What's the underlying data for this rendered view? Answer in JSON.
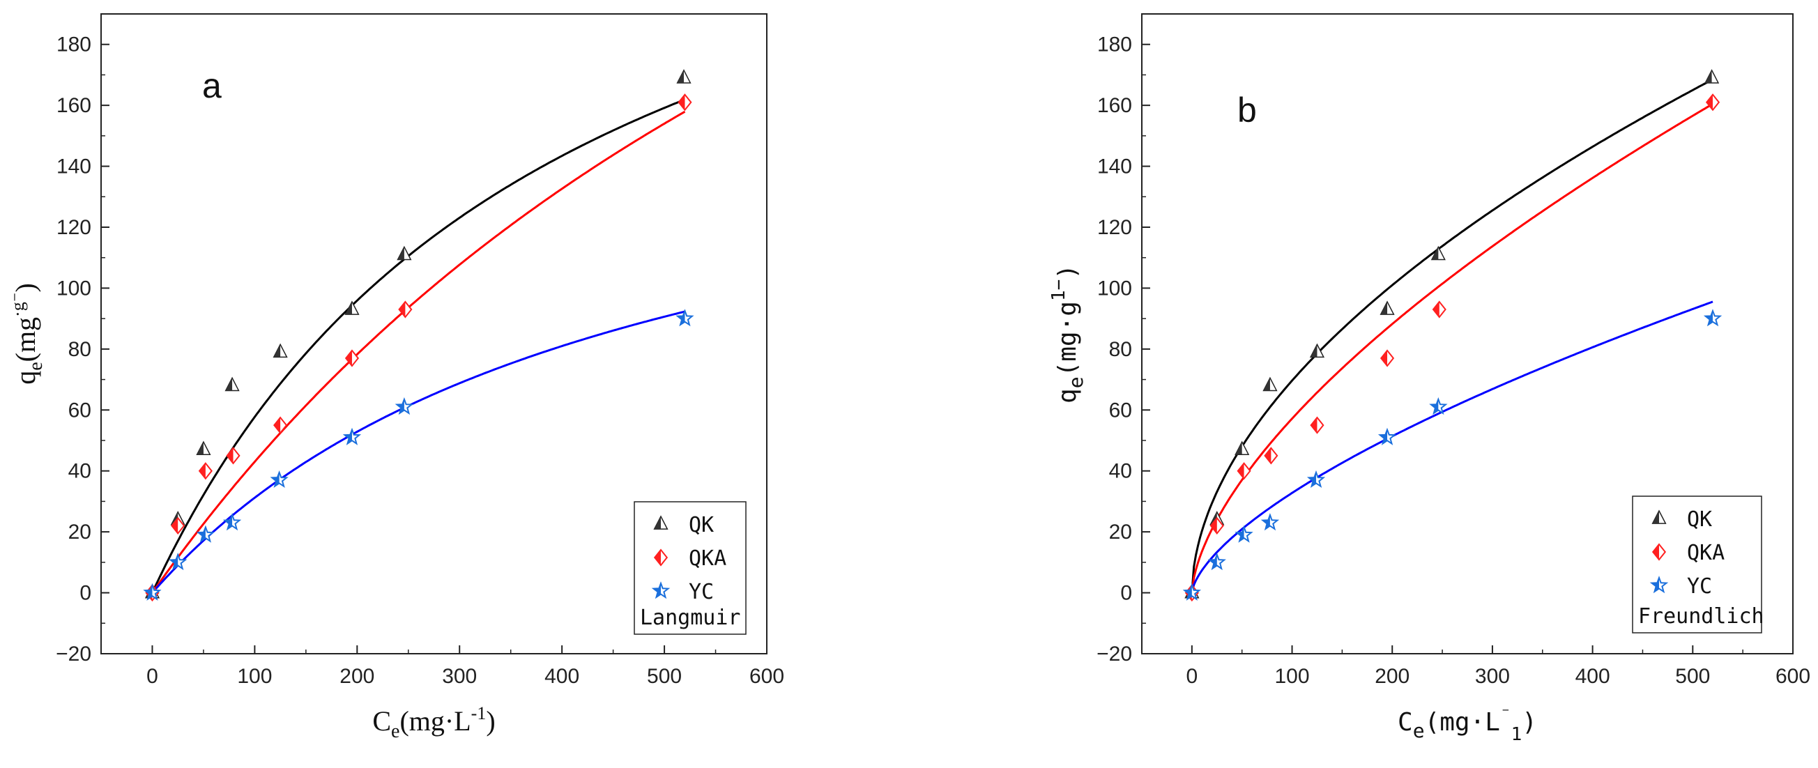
{
  "chart_data": [
    {
      "type": "scatter",
      "panel": "a",
      "model": "Langmuir",
      "xlabel": {
        "base": "C",
        "sub": "e",
        "unit": "(mg·L",
        "sup": "-1",
        "close": ")"
      },
      "ylabel": {
        "base": "q",
        "sub": "e",
        "unit": "(mg",
        "sup": "·g",
        "tail": "⁻",
        "close": ")"
      },
      "xlim": [
        -50,
        600
      ],
      "ylim": [
        -20,
        190
      ],
      "xticks": [
        0,
        100,
        200,
        300,
        400,
        500,
        600
      ],
      "yticks": [
        -20,
        0,
        20,
        40,
        60,
        80,
        100,
        120,
        140,
        160,
        180
      ],
      "legend": {
        "position": "bottom-right",
        "entries": [
          "QK",
          "QKA",
          "YC"
        ],
        "title": "Langmuir"
      },
      "series": [
        {
          "name": "QK",
          "marker": "triangle",
          "color": "#444444",
          "x": [
            0,
            25,
            50,
            78,
            125,
            195,
            246,
            519
          ],
          "y": [
            0,
            24,
            47,
            68,
            79,
            93,
            111,
            169
          ],
          "fit": {
            "type": "langmuir",
            "qmax": 284,
            "k": 0.00255,
            "color": "#000000"
          }
        },
        {
          "name": "QKA",
          "marker": "diamond",
          "color": "#ff2020",
          "x": [
            0,
            25,
            52,
            79,
            125,
            195,
            247,
            520
          ],
          "y": [
            0,
            22,
            40,
            45,
            55,
            77,
            93,
            161
          ],
          "fit": {
            "type": "langmuir",
            "qmax": 434,
            "k": 0.0011,
            "color": "#ff0000"
          }
        },
        {
          "name": "YC",
          "marker": "star",
          "color": "#1a6fdc",
          "x": [
            0,
            25,
            52,
            78,
            124,
            195,
            246,
            520
          ],
          "y": [
            0,
            10,
            19,
            23,
            37,
            51,
            61,
            90
          ],
          "fit": {
            "type": "langmuir",
            "qmax": 173,
            "k": 0.0022,
            "color": "#0000ff"
          }
        }
      ]
    },
    {
      "type": "scatter",
      "panel": "b",
      "model": "Freundlich",
      "xlabel": {
        "base": "C",
        "sub": "e",
        "unit": "(mg·L",
        "sup": "⁻",
        "sub2": "1",
        "close": ")"
      },
      "ylabel": {
        "base": "q",
        "sub": "e",
        "unit": "(mg·g",
        "sup": "1",
        "tail": "−",
        "close": ")"
      },
      "xlim": [
        -50,
        600
      ],
      "ylim": [
        -20,
        190
      ],
      "xticks": [
        0,
        100,
        200,
        300,
        400,
        500,
        600
      ],
      "yticks": [
        -20,
        0,
        20,
        40,
        60,
        80,
        100,
        120,
        140,
        160,
        180
      ],
      "legend": {
        "position": "bottom-right",
        "entries": [
          "QK",
          "QKA",
          "YC"
        ],
        "title": "Freundlich"
      },
      "series": [
        {
          "name": "QK",
          "marker": "triangle",
          "color": "#444444",
          "x": [
            0,
            25,
            50,
            78,
            125,
            195,
            246,
            519
          ],
          "y": [
            0,
            24,
            47,
            68,
            79,
            93,
            111,
            169
          ],
          "fit": {
            "type": "freundlich",
            "kf": 5.9,
            "n": 0.536,
            "color": "#000000"
          }
        },
        {
          "name": "QKA",
          "marker": "diamond",
          "color": "#ff2020",
          "x": [
            0,
            25,
            52,
            79,
            125,
            195,
            247,
            520
          ],
          "y": [
            0,
            22,
            40,
            45,
            55,
            77,
            93,
            161
          ],
          "fit": {
            "type": "freundlich",
            "kf": 3.2,
            "n": 0.626,
            "color": "#ff0000"
          }
        },
        {
          "name": "YC",
          "marker": "star",
          "color": "#1a6fdc",
          "x": [
            0,
            25,
            52,
            78,
            124,
            195,
            246,
            520
          ],
          "y": [
            0,
            10,
            19,
            23,
            37,
            51,
            61,
            90
          ],
          "fit": {
            "type": "freundlich",
            "kf": 1.65,
            "n": 0.649,
            "color": "#0000ff"
          }
        }
      ]
    }
  ]
}
